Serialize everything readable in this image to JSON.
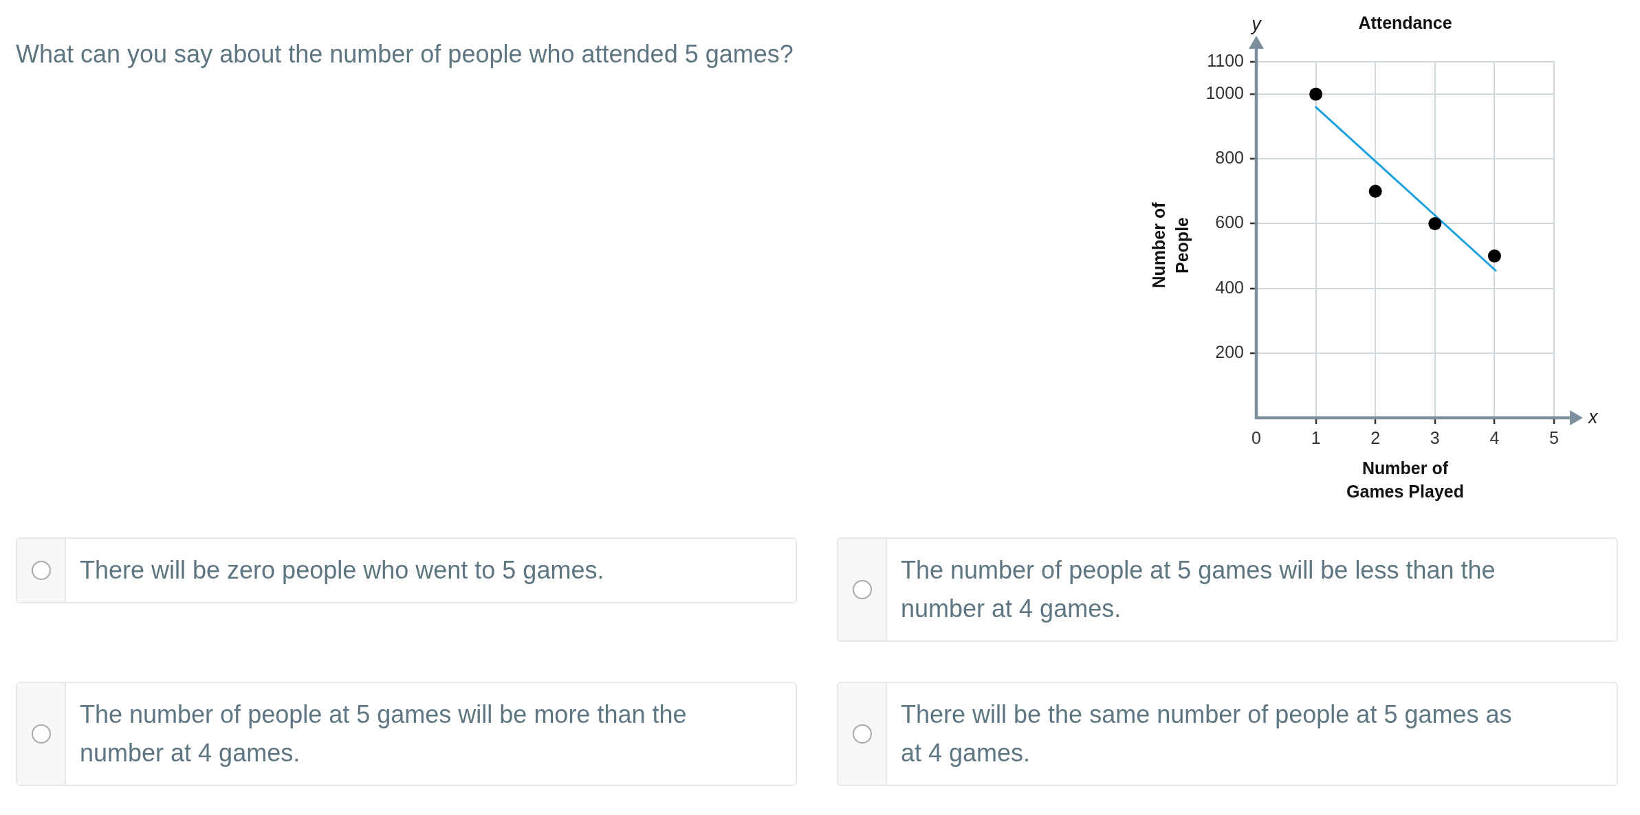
{
  "chart_data": {
    "type": "scatter",
    "title": "Attendance",
    "xlabel": "Number of Games Played",
    "ylabel": "Number of People",
    "annotations": [
      "What can you say about the number of people who attended 5 games?",
      "There will be zero people who went to 5 games.",
      "The number of people at 5 games will be less than the number at 4 games.",
      "The number of people at 5 games will be more than the number at 4 games.",
      "There will be the same number of people at 5 games as at 4 games.",
      "x",
      "y"
    ],
    "x": [
      1,
      2,
      3,
      4
    ],
    "series": [
      {
        "color": "#000000",
        "values": [
          1000,
          700,
          600,
          500
        ]
      },
      {
        "type": "line",
        "color": "#1a9fdf",
        "x": [
          1,
          4.02
        ],
        "values": [
          960,
          455
        ],
        "marker": "none"
      }
    ],
    "xlim": [
      0,
      5
    ],
    "ylim": [
      0,
      1100
    ],
    "xticks": [
      0,
      1,
      2,
      3,
      4,
      5
    ],
    "yticks": [
      200,
      400,
      600,
      800,
      1000,
      1100
    ],
    "grid": true,
    "marker": "circle"
  }
}
